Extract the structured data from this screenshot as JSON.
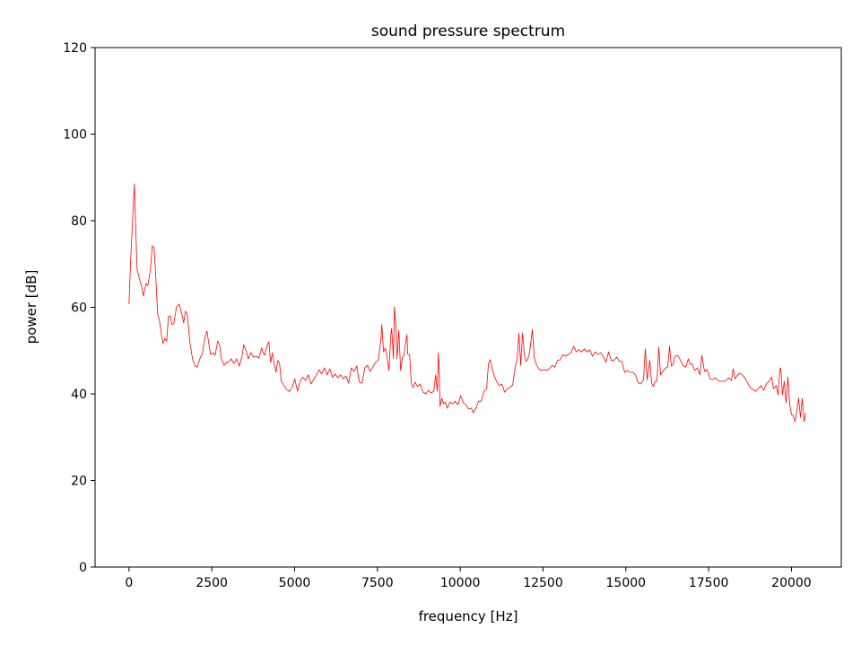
{
  "chart_data": {
    "type": "line",
    "title": "sound pressure spectrum",
    "xlabel": "frequency [Hz]",
    "ylabel": "power [dB]",
    "xlim": [
      -1024,
      21504
    ],
    "ylim": [
      0,
      120
    ],
    "xticks": [
      0,
      2500,
      5000,
      7500,
      10000,
      12500,
      15000,
      17500,
      20000
    ],
    "yticks": [
      0,
      20,
      40,
      60,
      80,
      100,
      120
    ],
    "grid": false,
    "line_color": "#ff0000",
    "series": [
      {
        "x": [
          0,
          54,
          162,
          244,
          325,
          379,
          433,
          514,
          568,
          650,
          704,
          758,
          812,
          866,
          920,
          974,
          1028,
          1082,
          1137,
          1191,
          1245,
          1299,
          1353,
          1434,
          1515,
          1597,
          1651,
          1705,
          1759,
          1840,
          1921,
          2003,
          2057,
          2138,
          2219,
          2300,
          2354,
          2409,
          2463,
          2544,
          2598,
          2679,
          2733,
          2787,
          2869,
          2950,
          3031,
          3085,
          3166,
          3248,
          3329,
          3410,
          3464,
          3545,
          3599,
          3680,
          3762,
          3843,
          3924,
          4005,
          4087,
          4168,
          4222,
          4276,
          4330,
          4384,
          4438,
          4493,
          4547,
          4601,
          4682,
          4763,
          4844,
          4926,
          5007,
          5088,
          5169,
          5250,
          5332,
          5413,
          5494,
          5575,
          5656,
          5738,
          5819,
          5900,
          5981,
          6062,
          6143,
          6225,
          6306,
          6387,
          6468,
          6549,
          6631,
          6712,
          6793,
          6874,
          6955,
          7037,
          7118,
          7199,
          7280,
          7361,
          7443,
          7524,
          7605,
          7632,
          7686,
          7740,
          7794,
          7849,
          7903,
          7930,
          7984,
          8011,
          8065,
          8092,
          8146,
          8200,
          8254,
          8308,
          8335,
          8390,
          8417,
          8471,
          8525,
          8579,
          8633,
          8714,
          8795,
          8877,
          8958,
          9039,
          9120,
          9202,
          9256,
          9310,
          9337,
          9364,
          9391,
          9445,
          9499,
          9553,
          9608,
          9689,
          9770,
          9851,
          9932,
          10014,
          10095,
          10176,
          10257,
          10338,
          10392,
          10474,
          10555,
          10636,
          10717,
          10798,
          10853,
          10907,
          10961,
          11015,
          11096,
          11177,
          11258,
          11340,
          11421,
          11502,
          11583,
          11664,
          11719,
          11773,
          11827,
          11881,
          11935,
          11989,
          12043,
          12097,
          12178,
          12232,
          12286,
          12368,
          12449,
          12530,
          12611,
          12692,
          12774,
          12855,
          12936,
          13017,
          13099,
          13180,
          13261,
          13342,
          13423,
          13505,
          13586,
          13667,
          13748,
          13830,
          13911,
          13992,
          14073,
          14154,
          14235,
          14317,
          14398,
          14479,
          14560,
          14641,
          14723,
          14804,
          14885,
          14966,
          15047,
          15129,
          15210,
          15291,
          15372,
          15453,
          15534,
          15589,
          15643,
          15724,
          15778,
          15832,
          15886,
          15940,
          15995,
          16049,
          16103,
          16157,
          16211,
          16265,
          16320,
          16374,
          16428,
          16482,
          16563,
          16645,
          16726,
          16807,
          16888,
          16942,
          16997,
          17078,
          17159,
          17240,
          17294,
          17376,
          17457,
          17538,
          17619,
          17700,
          17781,
          17863,
          17944,
          18025,
          18106,
          18187,
          18241,
          18295,
          18349,
          18430,
          18511,
          18593,
          18674,
          18755,
          18836,
          18917,
          18998,
          19080,
          19161,
          19242,
          19323,
          19404,
          19458,
          19540,
          19594,
          19648,
          19675,
          19729,
          19783,
          19838,
          19892,
          19946,
          20000,
          20054,
          20108,
          20162,
          20216,
          20271,
          20325,
          20379,
          20433
        ],
        "y": [
          60.7,
          71.5,
          88.5,
          68.8,
          66.3,
          65,
          62.6,
          65.5,
          65,
          68.8,
          74.2,
          73.8,
          66.7,
          58.4,
          57,
          53.9,
          51.6,
          52.8,
          52.2,
          57.8,
          58,
          56,
          56.2,
          60.1,
          60.7,
          58.4,
          56.4,
          59.1,
          58.4,
          51.8,
          47.9,
          46.4,
          46.2,
          48.1,
          49.5,
          53.3,
          54.5,
          51.6,
          49.1,
          49.5,
          48.9,
          52.2,
          51.4,
          48.1,
          46.6,
          47.3,
          47.5,
          48.1,
          47,
          48.1,
          46.4,
          48.7,
          51.4,
          49.7,
          48.1,
          49.5,
          48.5,
          48.7,
          48.3,
          50.6,
          48.9,
          51.2,
          52,
          47.3,
          49.5,
          47,
          45,
          47.7,
          47,
          42.9,
          41.9,
          41,
          40.6,
          41.5,
          43.5,
          40.6,
          42.9,
          43.9,
          43.1,
          44.4,
          42.3,
          43.3,
          44.4,
          45.6,
          44.6,
          46,
          44.4,
          45.8,
          43.9,
          44.6,
          43.7,
          44.4,
          43.5,
          44.1,
          42.5,
          46,
          45.2,
          46.4,
          42.7,
          42.5,
          46,
          46.6,
          45.2,
          46.2,
          47.3,
          47.7,
          52.6,
          56,
          49.7,
          50.6,
          48.1,
          45.4,
          53.5,
          55.1,
          48.1,
          60.1,
          54.7,
          48.1,
          54.7,
          45.4,
          48.5,
          48.9,
          50.6,
          53.7,
          49.1,
          49.1,
          42.3,
          41.5,
          42.7,
          41.7,
          42.3,
          40.4,
          40,
          40.8,
          40.2,
          40.6,
          44.4,
          40.6,
          49.5,
          46,
          37.1,
          39,
          37.7,
          38.1,
          36.7,
          38.1,
          37.7,
          38.3,
          37.5,
          39.6,
          37.9,
          37.5,
          36.5,
          36.7,
          35.6,
          36.7,
          38.3,
          38.3,
          40.6,
          41.2,
          47,
          47.9,
          46,
          44.4,
          42.9,
          41.9,
          42.3,
          40.4,
          41.2,
          41.5,
          42.1,
          46.4,
          47.9,
          54.1,
          46.6,
          54.1,
          49.1,
          47.5,
          48.1,
          49.7,
          54.9,
          48.5,
          47,
          45.8,
          45.4,
          45.6,
          45.4,
          45.8,
          46.6,
          46.2,
          47.7,
          47.9,
          49.1,
          48.7,
          49.1,
          49.5,
          51,
          49.7,
          50.2,
          49.7,
          50.4,
          49.7,
          50.2,
          48.7,
          49.7,
          49.1,
          49.5,
          48.7,
          47.3,
          49.7,
          47.7,
          47.7,
          48.5,
          47.5,
          47.5,
          45,
          45.4,
          45,
          45,
          44.4,
          42.5,
          42.3,
          43.3,
          50.4,
          43.3,
          47.7,
          42.5,
          41.7,
          42.9,
          42.9,
          50.8,
          44.4,
          45,
          45.6,
          46,
          46.2,
          51,
          46.4,
          46.8,
          48.7,
          48.9,
          47.9,
          46.6,
          46.2,
          48.1,
          46.8,
          47,
          45.4,
          46,
          44.4,
          48.9,
          45.2,
          45.6,
          43.5,
          43.3,
          43.7,
          43.1,
          42.9,
          42.9,
          43.1,
          43.7,
          43.1,
          45.8,
          43.5,
          44.1,
          44.8,
          44.4,
          43.7,
          42.5,
          41.5,
          41,
          40.6,
          41.2,
          41.9,
          40.8,
          42.3,
          42.9,
          43.9,
          41.2,
          41.9,
          39.8,
          45.6,
          46,
          39.8,
          42.9,
          37.9,
          43.9,
          37.7,
          35.2,
          35,
          33.6,
          35.9,
          39,
          34.6,
          39,
          33.6,
          35.6
        ]
      }
    ]
  }
}
